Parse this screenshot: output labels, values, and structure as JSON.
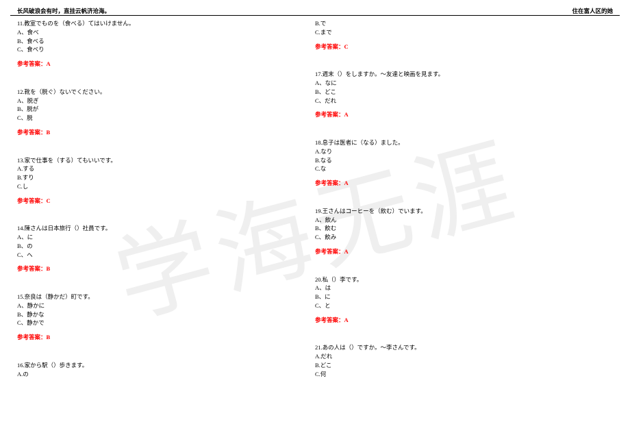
{
  "header": {
    "left": "长风破浪会有时，直挂云帆济沧海。",
    "right": "住在富人区的她"
  },
  "watermark": "学海无涯",
  "answer_label_prefix": "参考答案：",
  "left_column": [
    {
      "q": "11.教室でものを（食べる）てはいけません。",
      "opts": [
        "A、食べ",
        "B、食べる",
        "C、食べり"
      ],
      "ans": "A"
    },
    {
      "q": "12.靴を（脱ぐ）ないでください。",
      "opts": [
        "A、脱ぎ",
        "B、脱が",
        "C、脱"
      ],
      "ans": "B"
    },
    {
      "q": "13.家で仕事を（する）てもいいです。",
      "opts": [
        "A.する",
        "B.すり",
        "C.し"
      ],
      "ans": "C"
    },
    {
      "q": "14.陳さんは日本旅行（）社員です。",
      "opts": [
        "A、に",
        "B、の",
        "C、へ"
      ],
      "ans": "B"
    },
    {
      "q": "15.奈良は（静かだ）町です。",
      "opts": [
        "A、静かに",
        "B、静かな",
        "C、静かで"
      ],
      "ans": "B"
    },
    {
      "q": "16.家から駅（）歩きます。",
      "opts": [
        "A.の"
      ],
      "ans": null
    }
  ],
  "right_column_pre": {
    "opts": [
      "B.で",
      "C.まで"
    ],
    "ans": "C"
  },
  "right_column": [
    {
      "q": "17.週末（）をしますか。～友達と映画を見ます。",
      "opts": [
        "A、なに",
        "B、どこ",
        "C、だれ"
      ],
      "ans": "A"
    },
    {
      "q": "18.息子は医者に（なる）ました。",
      "opts": [
        "A.なり",
        "B.なる",
        "C.な"
      ],
      "ans": "A"
    },
    {
      "q": "19.王さんはコーヒーを（飲む）でいます。",
      "opts": [
        "A、飲ん",
        "B、飲む",
        "C、飲み"
      ],
      "ans": "A"
    },
    {
      "q": "20.私（）李です。",
      "opts": [
        "A、は",
        "B、に",
        "C、と"
      ],
      "ans": "A"
    },
    {
      "q": "21.あの人は（）ですか。～李さんです。",
      "opts": [
        "A.だれ",
        "B.どこ",
        "C.何"
      ],
      "ans": null
    }
  ]
}
